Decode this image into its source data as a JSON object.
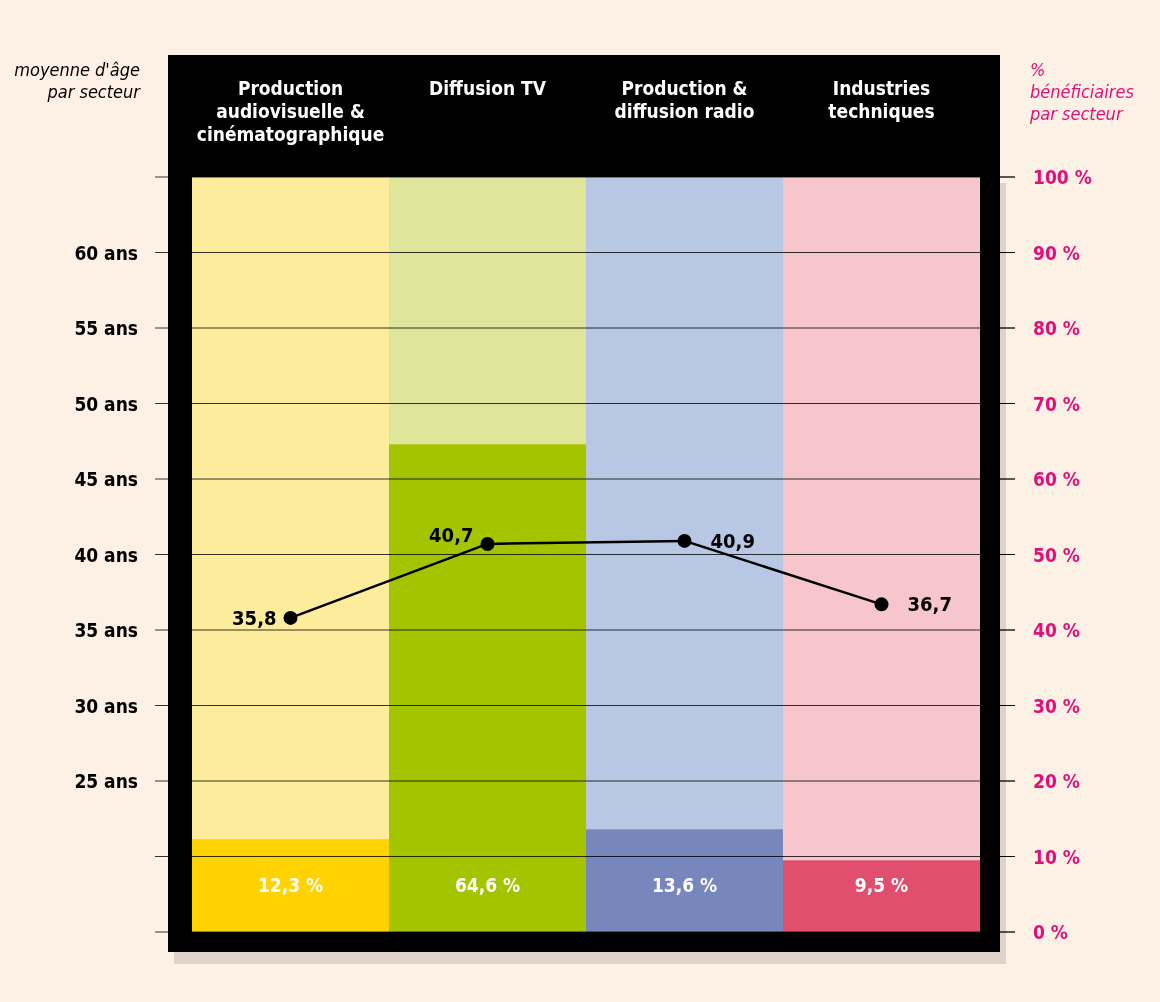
{
  "chart_data": {
    "type": "bar",
    "categories": [
      "Production audiovisuelle & cinématographique",
      "Diffusion TV",
      "Production & diffusion radio",
      "Industries techniques"
    ],
    "ylabel": "moyenne d'âge par secteur",
    "y2label": "% bénéficiaires par secteur",
    "series": [
      {
        "axis": "y2",
        "colors": [
          "#ffd200",
          "#a5c400",
          "#7886be",
          "#e0506e"
        ],
        "values": [
          12.3,
          64.6,
          13.6,
          9.5
        ],
        "value_labels": [
          "12,3 %",
          "64,6 %",
          "13,6 %",
          "9,5 %"
        ]
      },
      {
        "type": "line",
        "axis": "y",
        "color": "#000000",
        "values": [
          35.8,
          40.7,
          40.9,
          36.7
        ],
        "value_labels": [
          "35,8",
          "40,7",
          "40,9",
          "36,7"
        ]
      }
    ],
    "ylim": [
      15,
      65
    ],
    "yticks": [
      {
        "value": 15,
        "label": null
      },
      {
        "value": 20,
        "label": null
      },
      {
        "value": 25,
        "label": "25 ans"
      },
      {
        "value": 30,
        "label": "30 ans"
      },
      {
        "value": 35,
        "label": "35 ans"
      },
      {
        "value": 40,
        "label": "40 ans"
      },
      {
        "value": 45,
        "label": "45 ans"
      },
      {
        "value": 50,
        "label": "50 ans"
      },
      {
        "value": 55,
        "label": "55 ans"
      },
      {
        "value": 60,
        "label": "60 ans"
      },
      {
        "value": 65,
        "label": null
      }
    ],
    "y2lim": [
      0,
      100
    ],
    "y2ticks": [
      {
        "value": 0,
        "label": "0 %"
      },
      {
        "value": 10,
        "label": "10 %"
      },
      {
        "value": 20,
        "label": "20 %"
      },
      {
        "value": 30,
        "label": "30 %"
      },
      {
        "value": 40,
        "label": "40 %"
      },
      {
        "value": 50,
        "label": "50 %"
      },
      {
        "value": 60,
        "label": "60 %"
      },
      {
        "value": 70,
        "label": "70 %"
      },
      {
        "value": 80,
        "label": "80 %"
      },
      {
        "value": 90,
        "label": "90 %"
      },
      {
        "value": 100,
        "label": "100 %"
      }
    ],
    "bands": [
      {
        "axis": "x",
        "from": "Production audiovisuelle & cinématographique",
        "to": "Production audiovisuelle & cinématographique",
        "color": "#fcec9c"
      },
      {
        "axis": "x",
        "from": "Diffusion TV",
        "to": "Diffusion TV",
        "color": "#dfe59a"
      },
      {
        "axis": "x",
        "from": "Production & diffusion radio",
        "to": "Production & diffusion radio",
        "color": "#b8c8e4"
      },
      {
        "axis": "x",
        "from": "Industries techniques",
        "to": "Industries techniques",
        "color": "#f6c6cc"
      }
    ],
    "grid": "y",
    "marker": "circle",
    "line_style": "solid"
  }
}
